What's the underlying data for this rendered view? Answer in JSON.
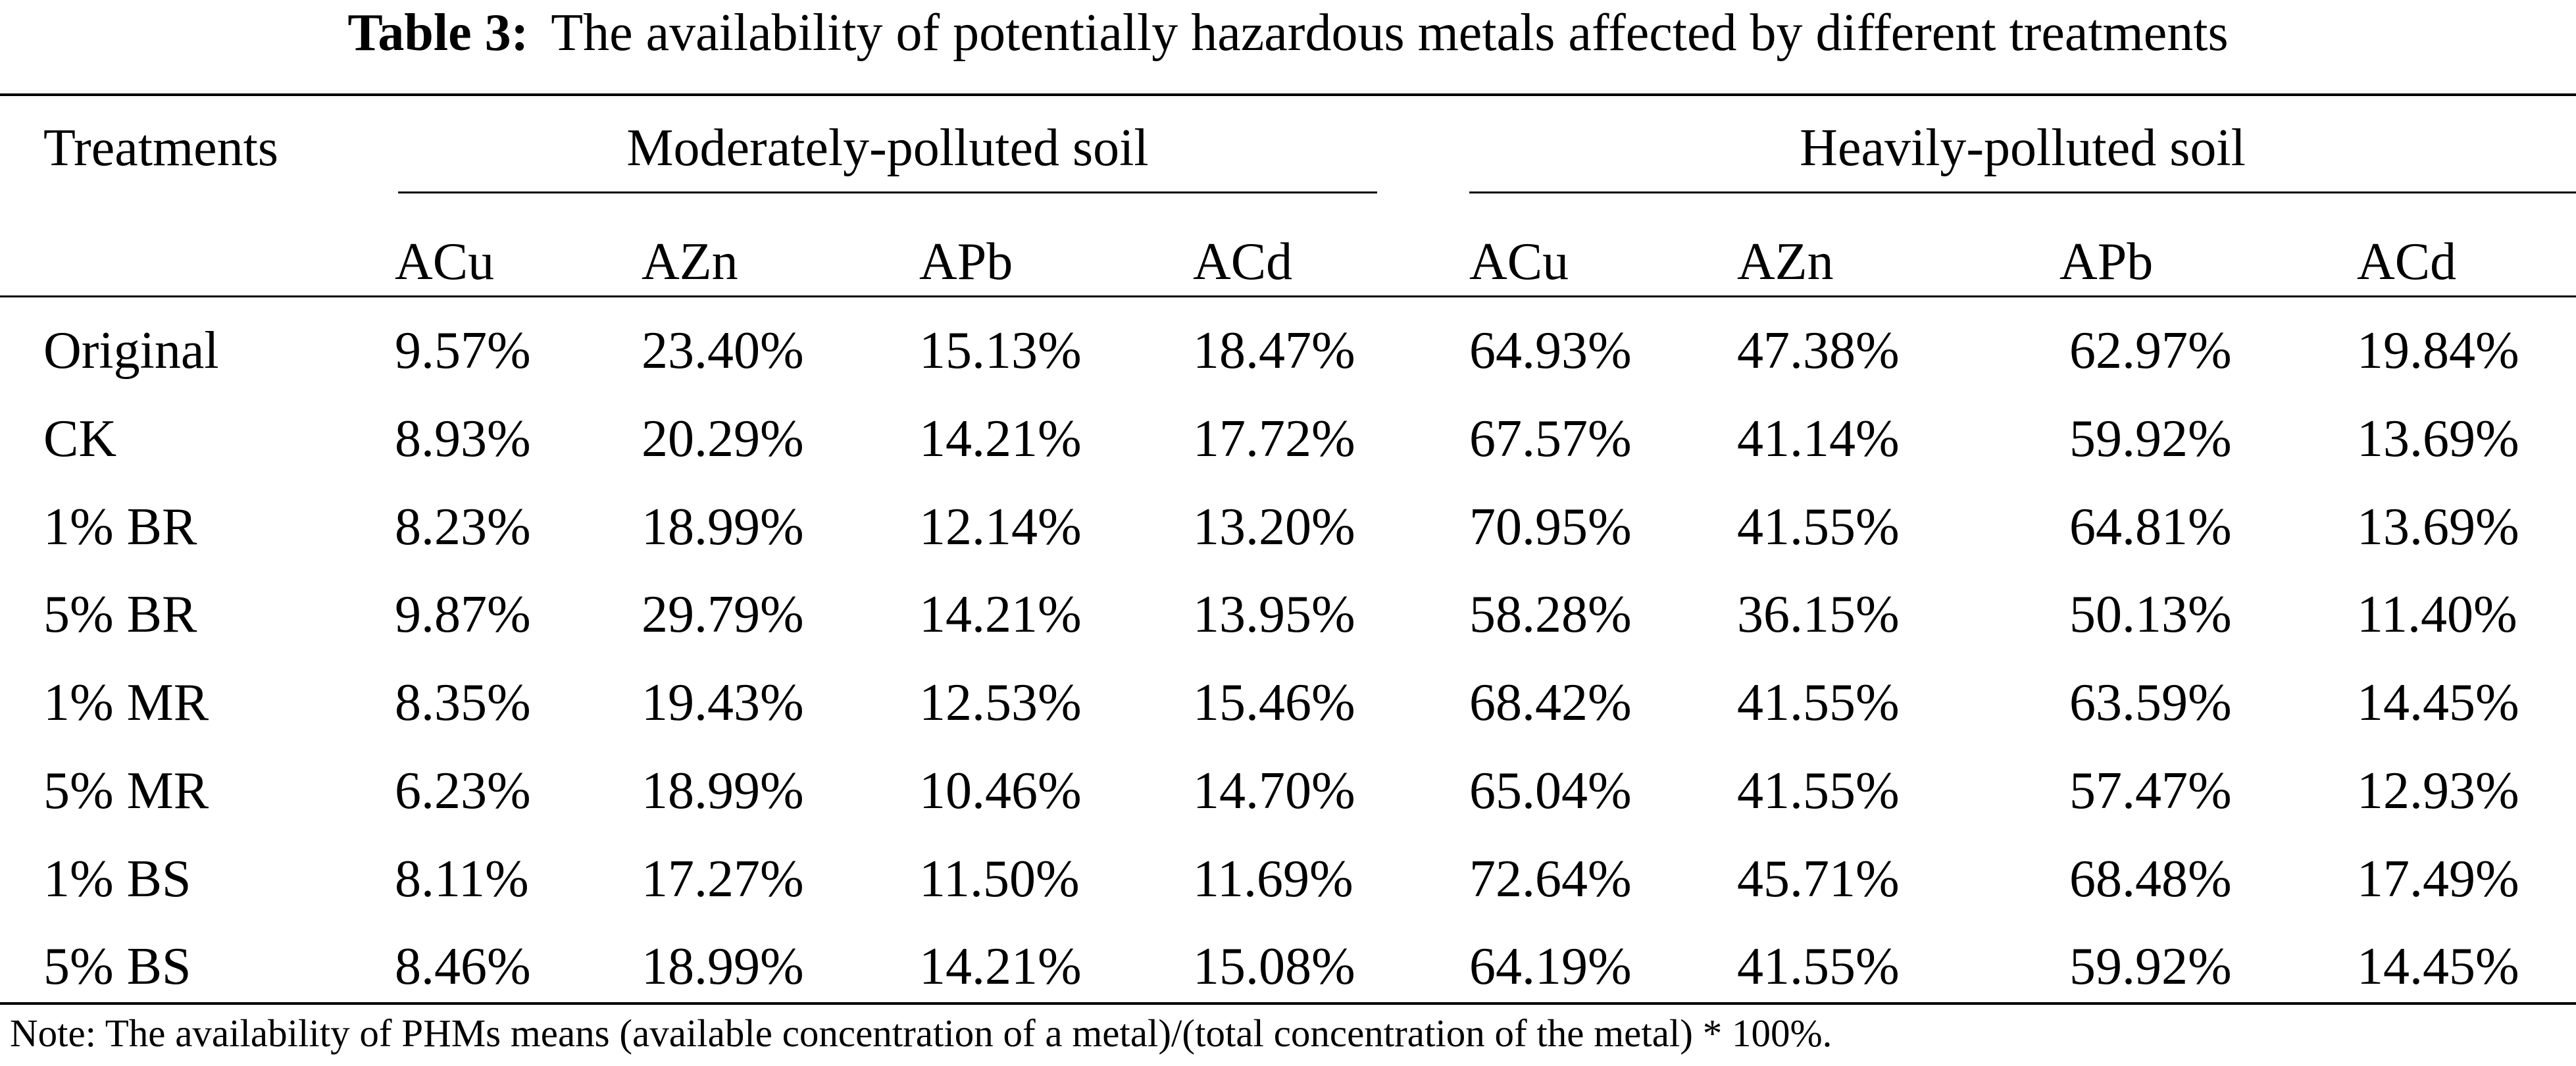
{
  "table": {
    "label": "Table 3:",
    "caption": "The availability of potentially hazardous metals affected by different treatments",
    "row_header": "Treatments",
    "groups": [
      "Moderately-polluted soil",
      "Heavily-polluted soil"
    ],
    "columns": [
      "ACu",
      "AZn",
      "APb",
      "ACd",
      "ACu",
      "AZn",
      "APb",
      "ACd"
    ],
    "rows": [
      {
        "treatment": "Original",
        "values": [
          "9.57%",
          "23.40%",
          "15.13%",
          "18.47%",
          "64.93%",
          "47.38%",
          "62.97%",
          "19.84%"
        ]
      },
      {
        "treatment": "CK",
        "values": [
          "8.93%",
          "20.29%",
          "14.21%",
          "17.72%",
          "67.57%",
          "41.14%",
          "59.92%",
          "13.69%"
        ]
      },
      {
        "treatment": "1% BR",
        "values": [
          "8.23%",
          "18.99%",
          "12.14%",
          "13.20%",
          "70.95%",
          "41.55%",
          "64.81%",
          "13.69%"
        ]
      },
      {
        "treatment": "5% BR",
        "values": [
          "9.87%",
          "29.79%",
          "14.21%",
          "13.95%",
          "58.28%",
          "36.15%",
          "50.13%",
          "11.40%"
        ]
      },
      {
        "treatment": "1% MR",
        "values": [
          "8.35%",
          "19.43%",
          "12.53%",
          "15.46%",
          "68.42%",
          "41.55%",
          "63.59%",
          "14.45%"
        ]
      },
      {
        "treatment": "5% MR",
        "values": [
          "6.23%",
          "18.99%",
          "10.46%",
          "14.70%",
          "65.04%",
          "41.55%",
          "57.47%",
          "12.93%"
        ]
      },
      {
        "treatment": "1% BS",
        "values": [
          "8.11%",
          "17.27%",
          "11.50%",
          "11.69%",
          "72.64%",
          "45.71%",
          "68.48%",
          "17.49%"
        ]
      },
      {
        "treatment": "5% BS",
        "values": [
          "8.46%",
          "18.99%",
          "14.21%",
          "15.08%",
          "64.19%",
          "41.55%",
          "59.92%",
          "14.45%"
        ]
      }
    ],
    "note": "Note: The availability of PHMs means (available concentration of a metal)/(total concentration of the metal) * 100%."
  }
}
